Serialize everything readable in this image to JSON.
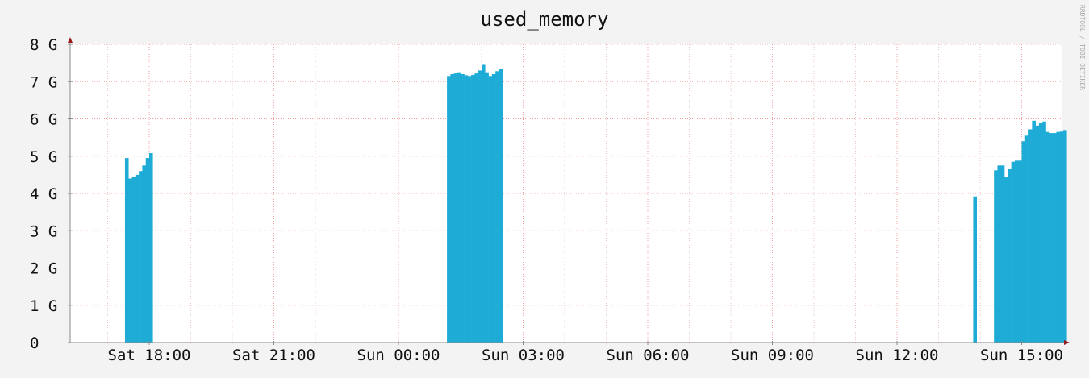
{
  "chart_data": {
    "type": "bar",
    "title": "used_memory",
    "watermark": "RRDTOOL / TOBI OETIKER",
    "xlabel": "",
    "ylabel": "",
    "unit": "G",
    "ylim": [
      0,
      8
    ],
    "y_ticks": [
      {
        "value": 0,
        "label": "0"
      },
      {
        "value": 1,
        "label": "1 G"
      },
      {
        "value": 2,
        "label": "2 G"
      },
      {
        "value": 3,
        "label": "3 G"
      },
      {
        "value": 4,
        "label": "4 G"
      },
      {
        "value": 5,
        "label": "5 G"
      },
      {
        "value": 6,
        "label": "6 G"
      },
      {
        "value": 7,
        "label": "7 G"
      },
      {
        "value": 8,
        "label": "8 G"
      }
    ],
    "x_ticks": [
      "Sat 18:00",
      "Sat 21:00",
      "Sun 00:00",
      "Sun 03:00",
      "Sun 06:00",
      "Sun 09:00",
      "Sun 12:00",
      "Sun 15:00"
    ],
    "grid": true,
    "colors": {
      "bar": "#1eacd6",
      "major_grid": "#f0a0a0",
      "minor_grid": "#e8c8c8",
      "axis": "#888888",
      "arrow": "#9a1a1a",
      "background": "#f3f3f3",
      "plot_background": "#ffffff"
    },
    "series": [
      {
        "values": [
          {
            "x": "Sat 17:30",
            "y": 4.95
          },
          {
            "x": "Sat 17:35",
            "y": 4.4
          },
          {
            "x": "Sat 17:40",
            "y": 4.45
          },
          {
            "x": "Sat 17:45",
            "y": 4.5
          },
          {
            "x": "Sat 17:50",
            "y": 4.6
          },
          {
            "x": "Sat 17:55",
            "y": 4.75
          },
          {
            "x": "Sat 18:00",
            "y": 4.95
          },
          {
            "x": "Sat 18:05",
            "y": 5.08
          },
          {
            "x": "Sun 01:15",
            "y": 7.15
          },
          {
            "x": "Sun 01:20",
            "y": 7.2
          },
          {
            "x": "Sun 01:25",
            "y": 7.22
          },
          {
            "x": "Sun 01:30",
            "y": 7.25
          },
          {
            "x": "Sun 01:35",
            "y": 7.2
          },
          {
            "x": "Sun 01:40",
            "y": 7.17
          },
          {
            "x": "Sun 01:45",
            "y": 7.15
          },
          {
            "x": "Sun 01:50",
            "y": 7.18
          },
          {
            "x": "Sun 01:55",
            "y": 7.22
          },
          {
            "x": "Sun 02:00",
            "y": 7.3
          },
          {
            "x": "Sun 02:05",
            "y": 7.45
          },
          {
            "x": "Sun 02:10",
            "y": 7.25
          },
          {
            "x": "Sun 02:15",
            "y": 7.15
          },
          {
            "x": "Sun 02:20",
            "y": 7.2
          },
          {
            "x": "Sun 02:25",
            "y": 7.28
          },
          {
            "x": "Sun 02:30",
            "y": 7.35
          },
          {
            "x": "Sun 13:55",
            "y": 3.92
          },
          {
            "x": "Sun 14:25",
            "y": 4.62
          },
          {
            "x": "Sun 14:30",
            "y": 4.75
          },
          {
            "x": "Sun 14:35",
            "y": 4.75
          },
          {
            "x": "Sun 14:40",
            "y": 4.45
          },
          {
            "x": "Sun 14:45",
            "y": 4.65
          },
          {
            "x": "Sun 14:50",
            "y": 4.85
          },
          {
            "x": "Sun 14:55",
            "y": 4.88
          },
          {
            "x": "Sun 15:00",
            "y": 4.88
          },
          {
            "x": "Sun 15:05",
            "y": 5.4
          },
          {
            "x": "Sun 15:10",
            "y": 5.55
          },
          {
            "x": "Sun 15:15",
            "y": 5.72
          },
          {
            "x": "Sun 15:20",
            "y": 5.95
          },
          {
            "x": "Sun 15:25",
            "y": 5.82
          },
          {
            "x": "Sun 15:30",
            "y": 5.88
          },
          {
            "x": "Sun 15:35",
            "y": 5.93
          },
          {
            "x": "Sun 15:40",
            "y": 5.65
          },
          {
            "x": "Sun 15:45",
            "y": 5.62
          },
          {
            "x": "Sun 15:50",
            "y": 5.62
          },
          {
            "x": "Sun 15:55",
            "y": 5.65
          },
          {
            "x": "Sun 16:00",
            "y": 5.66
          },
          {
            "x": "Sun 16:05",
            "y": 5.7
          }
        ]
      }
    ]
  }
}
